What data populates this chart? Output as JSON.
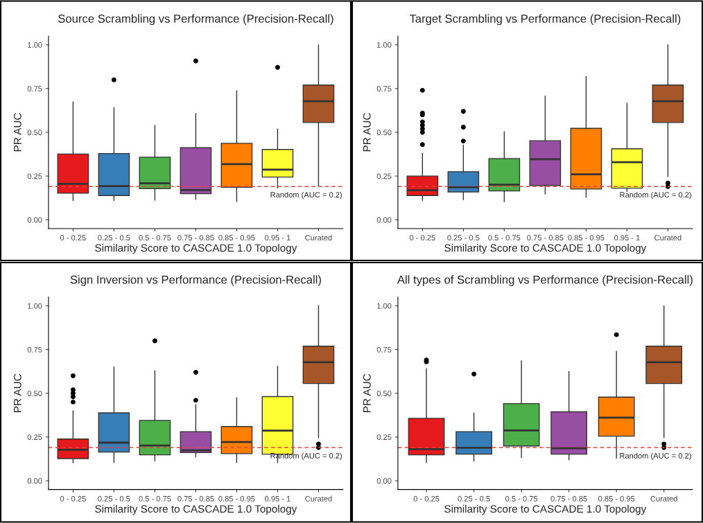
{
  "chart_data": [
    {
      "type": "box",
      "title": "Source Scrambling vs Performance (Precision-Recall)",
      "xlabel": "Similarity Score to CASCADE 1.0 Topology",
      "ylabel": "PR AUC",
      "categories": [
        "0 - 0.25",
        "0.25 - 0.5",
        "0.5 - 0.75",
        "0.75 - 0.85",
        "0.85 - 0.95",
        "0.95 - 1",
        "Curated"
      ],
      "colors": [
        "#e41a1c",
        "#377eb8",
        "#4daf4a",
        "#984ea3",
        "#ff7f00",
        "#ffff33",
        "#a65628"
      ],
      "boxes": [
        {
          "low": 0.11,
          "q1": 0.152,
          "median": 0.206,
          "q3": 0.376,
          "high": 0.674
        },
        {
          "low": 0.11,
          "q1": 0.139,
          "median": 0.193,
          "q3": 0.379,
          "high": 0.641,
          "outliers": [
            0.8
          ]
        },
        {
          "low": 0.112,
          "q1": 0.178,
          "median": 0.209,
          "q3": 0.358,
          "high": 0.54
        },
        {
          "low": 0.116,
          "q1": 0.149,
          "median": 0.17,
          "q3": 0.412,
          "high": 0.608,
          "outliers": [
            0.908
          ]
        },
        {
          "low": 0.104,
          "q1": 0.186,
          "median": 0.318,
          "q3": 0.437,
          "high": 0.737
        },
        {
          "low": 0.182,
          "q1": 0.244,
          "median": 0.287,
          "q3": 0.402,
          "high": 0.519,
          "outliers": [
            0.871
          ]
        },
        {
          "low": 0.192,
          "q1": 0.556,
          "median": 0.678,
          "q3": 0.77,
          "high": 1.0
        }
      ],
      "ylim": [
        -0.05,
        1.05
      ],
      "yticks": [
        {
          "value": 0,
          "label": "0.00"
        },
        {
          "value": 0.25,
          "label": "0.25"
        },
        {
          "value": 0.5,
          "label": "0.50"
        },
        {
          "value": 0.75,
          "label": "0.75"
        },
        {
          "value": 1,
          "label": "1.00"
        }
      ],
      "ref_lines": [
        {
          "axis": "y",
          "value": 0.19,
          "label": "Random (AUC = 0.2)",
          "color": "#e8423f",
          "line_style": "dashed"
        }
      ]
    },
    {
      "type": "box",
      "title": "Target Scrambling vs Performance (Precision-Recall)",
      "xlabel": "Similarity Score to CASCADE 1.0 Topology",
      "ylabel": "PR AUC",
      "categories": [
        "0 - 0.25",
        "0.25 - 0.5",
        "0.5 - 0.75",
        "0.75 - 0.85",
        "0.85 - 0.95",
        "0.95 - 1",
        "Curated"
      ],
      "colors": [
        "#e41a1c",
        "#377eb8",
        "#4daf4a",
        "#984ea3",
        "#ff7f00",
        "#ffff33",
        "#a65628"
      ],
      "boxes": [
        {
          "low": 0.11,
          "q1": 0.139,
          "median": 0.169,
          "q3": 0.25,
          "high": 0.38,
          "outliers": [
            0.74,
            0.61,
            0.6,
            0.56,
            0.54,
            0.52,
            0.5,
            0.43
          ]
        },
        {
          "low": 0.115,
          "q1": 0.159,
          "median": 0.186,
          "q3": 0.275,
          "high": 0.427,
          "outliers": [
            0.62,
            0.53,
            0.45
          ]
        },
        {
          "low": 0.103,
          "q1": 0.165,
          "median": 0.201,
          "q3": 0.35,
          "high": 0.503
        },
        {
          "low": 0.147,
          "q1": 0.196,
          "median": 0.346,
          "q3": 0.452,
          "high": 0.707
        },
        {
          "low": 0.129,
          "q1": 0.176,
          "median": 0.26,
          "q3": 0.523,
          "high": 0.819
        },
        {
          "low": 0.162,
          "q1": 0.181,
          "median": 0.329,
          "q3": 0.406,
          "high": 0.667
        },
        {
          "low": 0.247,
          "q1": 0.556,
          "median": 0.678,
          "q3": 0.77,
          "high": 1.0,
          "outliers": [
            0.21,
            0.19
          ]
        }
      ],
      "ylim": [
        -0.05,
        1.05
      ],
      "yticks": [
        {
          "value": 0,
          "label": "0.00"
        },
        {
          "value": 0.25,
          "label": "0.25"
        },
        {
          "value": 0.5,
          "label": "0.50"
        },
        {
          "value": 0.75,
          "label": "0.75"
        },
        {
          "value": 1,
          "label": "1.00"
        }
      ],
      "ref_lines": [
        {
          "axis": "y",
          "value": 0.19,
          "label": "Random (AUC = 0.2)",
          "color": "#e8423f",
          "line_style": "dashed"
        }
      ]
    },
    {
      "type": "box",
      "title": "Sign Inversion vs Performance (Precision-Recall)",
      "xlabel": "Similarity Score to CASCADE 1.0 Topology",
      "ylabel": "PR AUC",
      "categories": [
        "0 - 0.25",
        "0.25 - 0.5",
        "0.5 - 0.75",
        "0.75 - 0.85",
        "0.85 - 0.95",
        "0.95 - 1",
        "Curated"
      ],
      "colors": [
        "#e41a1c",
        "#377eb8",
        "#4daf4a",
        "#984ea3",
        "#ff7f00",
        "#ffff33",
        "#a65628"
      ],
      "boxes": [
        {
          "low": 0.103,
          "q1": 0.127,
          "median": 0.177,
          "q3": 0.239,
          "high": 0.4,
          "outliers": [
            0.6,
            0.52,
            0.5,
            0.48,
            0.45
          ]
        },
        {
          "low": 0.104,
          "q1": 0.164,
          "median": 0.218,
          "q3": 0.388,
          "high": 0.651
        },
        {
          "low": 0.114,
          "q1": 0.148,
          "median": 0.202,
          "q3": 0.345,
          "high": 0.629,
          "outliers": [
            0.8
          ]
        },
        {
          "low": 0.136,
          "q1": 0.161,
          "median": 0.174,
          "q3": 0.281,
          "high": 0.436,
          "outliers": [
            0.62,
            0.46
          ]
        },
        {
          "low": 0.104,
          "q1": 0.155,
          "median": 0.221,
          "q3": 0.31,
          "high": 0.474
        },
        {
          "low": 0.104,
          "q1": 0.152,
          "median": 0.287,
          "q3": 0.481,
          "high": 0.655
        },
        {
          "low": 0.246,
          "q1": 0.556,
          "median": 0.678,
          "q3": 0.769,
          "high": 1.0,
          "outliers": [
            0.21,
            0.19
          ]
        }
      ],
      "ylim": [
        -0.05,
        1.05
      ],
      "yticks": [
        {
          "value": 0,
          "label": "0.00"
        },
        {
          "value": 0.25,
          "label": "0.25"
        },
        {
          "value": 0.5,
          "label": "0.50"
        },
        {
          "value": 0.75,
          "label": "0.75"
        },
        {
          "value": 1,
          "label": "1.00"
        }
      ],
      "ref_lines": [
        {
          "axis": "y",
          "value": 0.19,
          "label": "Random (AUC = 0.2)",
          "color": "#e8423f",
          "line_style": "dashed"
        }
      ]
    },
    {
      "type": "box",
      "title": "All types of Scrambling vs Performance (Precision-Recall)",
      "xlabel": "Similarity Score to CASCADE 1.0 Topology",
      "ylabel": "PR AUC",
      "categories": [
        "0 - 0.25",
        "0.25 - 0.5",
        "0.5 - 0.75",
        "0.75 - 0.85",
        "0.85 - 0.95",
        "Curated"
      ],
      "colors": [
        "#e41a1c",
        "#377eb8",
        "#4daf4a",
        "#984ea3",
        "#ff7f00",
        "#a65628"
      ],
      "boxes": [
        {
          "low": 0.104,
          "q1": 0.148,
          "median": 0.181,
          "q3": 0.357,
          "high": 0.642,
          "outliers": [
            0.69,
            0.68
          ]
        },
        {
          "low": 0.112,
          "q1": 0.152,
          "median": 0.189,
          "q3": 0.281,
          "high": 0.387,
          "outliers": [
            0.61
          ]
        },
        {
          "low": 0.133,
          "q1": 0.199,
          "median": 0.288,
          "q3": 0.441,
          "high": 0.686
        },
        {
          "low": 0.12,
          "q1": 0.152,
          "median": 0.186,
          "q3": 0.394,
          "high": 0.625
        },
        {
          "low": 0.129,
          "q1": 0.255,
          "median": 0.361,
          "q3": 0.478,
          "high": 0.74,
          "outliers": [
            0.835
          ]
        },
        {
          "low": 0.246,
          "q1": 0.556,
          "median": 0.678,
          "q3": 0.769,
          "high": 1.0,
          "outliers": [
            0.21,
            0.19
          ]
        }
      ],
      "ylim": [
        -0.05,
        1.05
      ],
      "yticks": [
        {
          "value": 0,
          "label": "0.00"
        },
        {
          "value": 0.25,
          "label": "0.25"
        },
        {
          "value": 0.5,
          "label": "0.50"
        },
        {
          "value": 0.75,
          "label": "0.75"
        },
        {
          "value": 1,
          "label": "1.00"
        }
      ],
      "ref_lines": [
        {
          "axis": "y",
          "value": 0.19,
          "label": "Random (AUC = 0.2)",
          "color": "#e8423f",
          "line_style": "dashed"
        }
      ]
    }
  ]
}
